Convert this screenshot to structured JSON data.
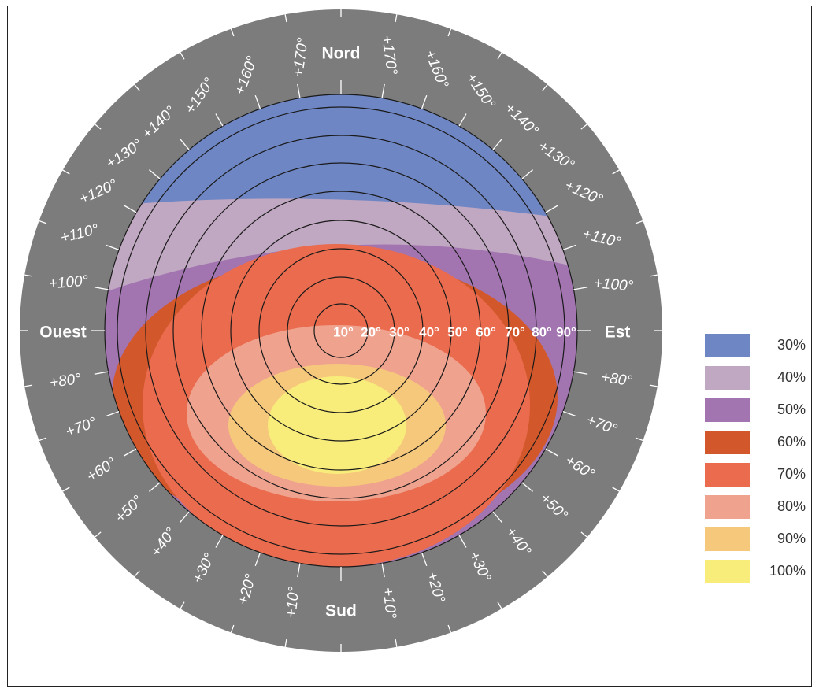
{
  "directions": {
    "north": "Nord",
    "south": "Sud",
    "west": "Ouest",
    "east": "Est"
  },
  "rim_angles": {
    "top_left": [
      "+170°",
      "+160°",
      "+150°",
      "+140°",
      "+130°",
      "+120°",
      "+110°",
      "+100°"
    ],
    "top_right": [
      "+170°",
      "+160°",
      "+150°",
      "+140°",
      "+130°",
      "+120°",
      "+110°",
      "+100°"
    ],
    "bottom_left": [
      "+80°",
      "+70°",
      "+60°",
      "+50°",
      "+40°",
      "+30°",
      "+20°",
      "+10°"
    ],
    "bottom_right": [
      "+80°",
      "+70°",
      "+60°",
      "+50°",
      "+40°",
      "+30°",
      "+20°",
      "+10°"
    ]
  },
  "ring_labels": [
    "10°",
    "20°",
    "30°",
    "40°",
    "50°",
    "60°",
    "70°",
    "80°",
    "90°"
  ],
  "legend": [
    {
      "label": "30%",
      "color": "#6f86c4"
    },
    {
      "label": "40%",
      "color": "#c0a7c2"
    },
    {
      "label": "50%",
      "color": "#a274b0"
    },
    {
      "label": "60%",
      "color": "#d2582c"
    },
    {
      "label": "70%",
      "color": "#ea6b4d"
    },
    {
      "label": "80%",
      "color": "#efa28e"
    },
    {
      "label": "90%",
      "color": "#f6c87c"
    },
    {
      "label": "100%",
      "color": "#f8ec7a"
    }
  ],
  "colors": {
    "rim": "#7d7c7c",
    "ring_line": "#1a1a1a",
    "tick": "#ffffff"
  }
}
